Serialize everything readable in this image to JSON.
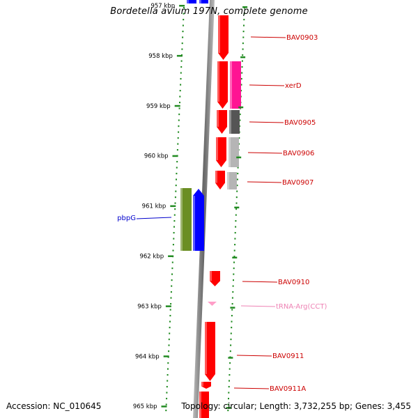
{
  "map": {
    "title": "Bordetella avium 197N, complete genome",
    "accession": "Accession: NC_010645",
    "topology": "Topology: circular; Length: 3,732,255 bp; Genes: 3,455"
  },
  "ticks": [
    {
      "label": "957 kbp",
      "kbp": 957
    },
    {
      "label": "958 kbp",
      "kbp": 958
    },
    {
      "label": "959 kbp",
      "kbp": 959
    },
    {
      "label": "960 kbp",
      "kbp": 960
    },
    {
      "label": "961 kbp",
      "kbp": 961
    },
    {
      "label": "962 kbp",
      "kbp": 962
    },
    {
      "label": "963 kbp",
      "kbp": 963
    },
    {
      "label": "964 kbp",
      "kbp": 964
    },
    {
      "label": "965 kbp",
      "kbp": 965
    }
  ],
  "colors": {
    "cds": "#ff0000",
    "cds_reverse": "#0000ff",
    "xerD": "#ff1493",
    "gray_dark": "#555555",
    "gray_light": "#b5b5b5",
    "pbpG_olive": "#6b8e23",
    "trna": "#ff9ec8",
    "backbone": "#888888",
    "tick": "#228b22",
    "label_red": "#cc0000",
    "label_blue": "#0000cc",
    "label_pink": "#ee82b4"
  },
  "genes": [
    {
      "label": "BAV0903",
      "color": "label_red"
    },
    {
      "label": "xerD",
      "color": "label_red"
    },
    {
      "label": "BAV0905",
      "color": "label_red"
    },
    {
      "label": "BAV0906",
      "color": "label_red"
    },
    {
      "label": "BAV0907",
      "color": "label_red"
    },
    {
      "label": "pbpG",
      "color": "label_blue"
    },
    {
      "label": "BAV0910",
      "color": "label_red"
    },
    {
      "label": "tRNA-Arg(CCT)",
      "color": "label_pink"
    },
    {
      "label": "BAV0911",
      "color": "label_red"
    },
    {
      "label": "BAV0911A",
      "color": "label_red"
    }
  ]
}
